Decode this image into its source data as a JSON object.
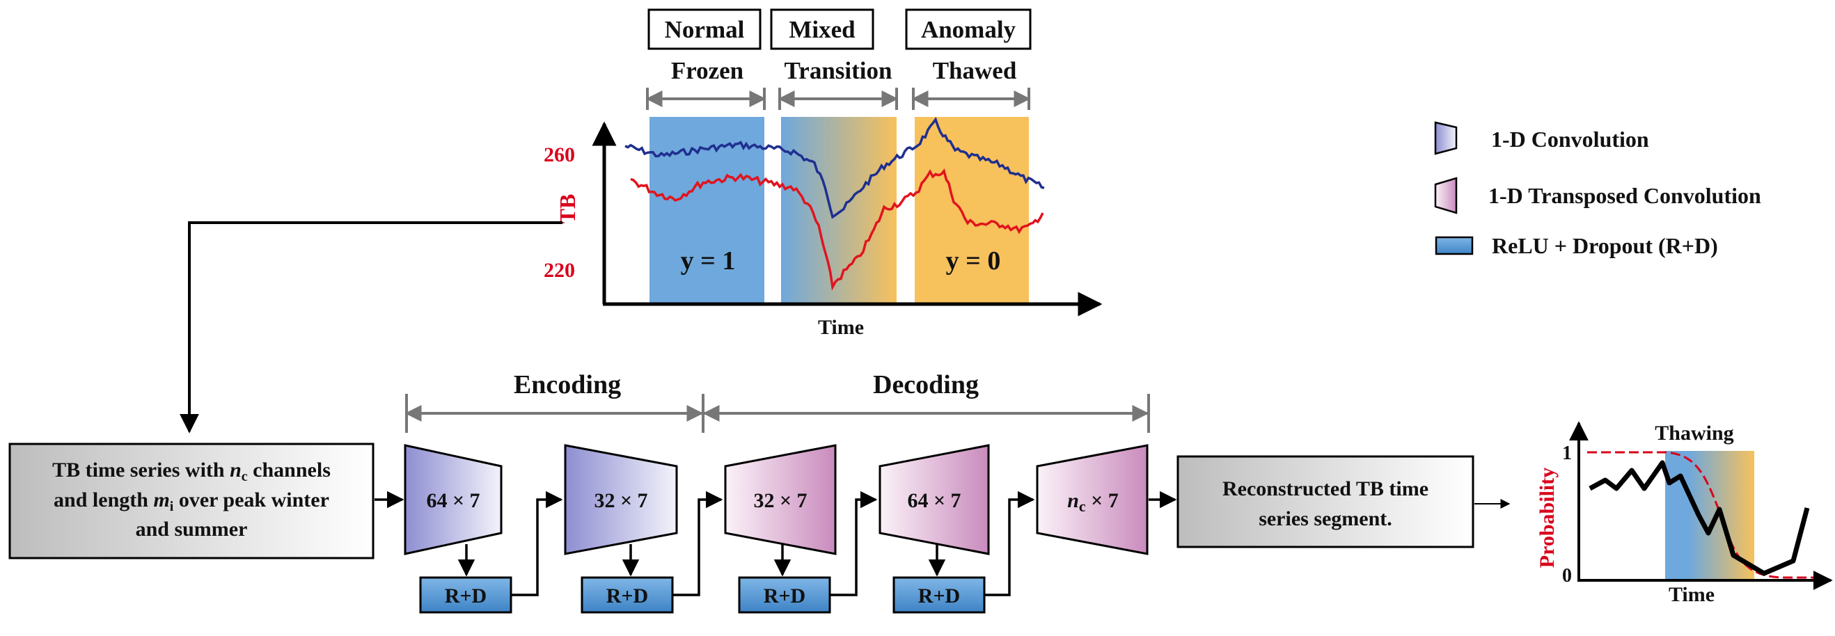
{
  "top_chart": {
    "category_boxes": [
      "Normal",
      "Mixed",
      "Anomaly"
    ],
    "phases": [
      "Frozen",
      "Transition",
      "Thawed"
    ],
    "y_ticks": [
      "260",
      "220"
    ],
    "ylabel": "TB",
    "xlabel": "Time",
    "label_left": "y = 1",
    "label_right": "y = 0"
  },
  "legend": {
    "conv": "1-D Convolution",
    "tconv": "1-D Transposed Convolution",
    "relu": "ReLU + Dropout (R+D)"
  },
  "pipeline": {
    "encoding": "Encoding",
    "decoding": "Decoding",
    "input_line1_a": "TB time series with ",
    "input_line1_var": "n",
    "input_line1_sub": "c",
    "input_line1_b": " channels",
    "input_line2_a": "and length ",
    "input_line2_var": "m",
    "input_line2_sub": "i",
    "input_line2_b": " over peak winter",
    "input_line3": "and summer",
    "enc1": "64 × 7",
    "enc2": "32 × 7",
    "dec1": "32 × 7",
    "dec2": "64 × 7",
    "dec3_var": "n",
    "dec3_sub": "c",
    "dec3_rest": " × 7",
    "rd": "R+D",
    "output_line1": "Reconstructed TB time",
    "output_line2": "series segment."
  },
  "prob_chart": {
    "title": "Thawing",
    "ylabel": "Probability",
    "xlabel": "Time",
    "y_top": "1",
    "y_bottom": "0"
  },
  "colors": {
    "frozen": "#6fa8dc",
    "thawed": "#f7c15c",
    "blue_series": "#1f2f8f",
    "red_series": "#e0141e",
    "rd_box": "#5b9bd5"
  }
}
